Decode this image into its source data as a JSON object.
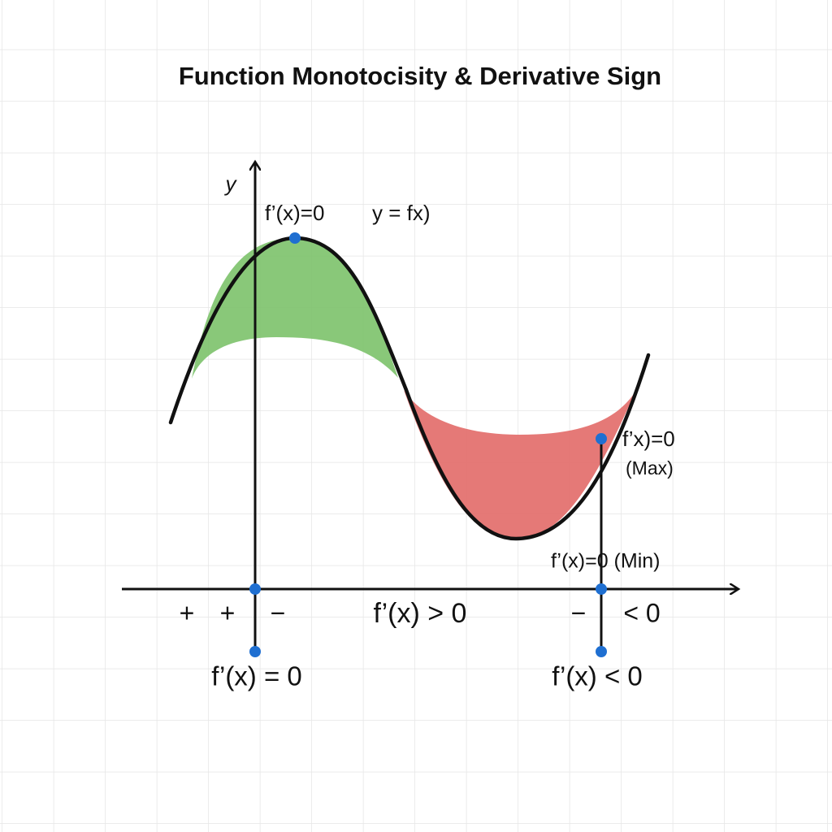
{
  "title": "Function Monotocisity & Derivative Sign",
  "axes": {
    "y_label": "y"
  },
  "annotations": {
    "max_top": "f’(x)=0",
    "curve_name": "y = fx)",
    "right_point": "f’x)=0",
    "right_point_note": "(Max)",
    "min_label": "f’(x)=0 (Min)",
    "bottom_left": "f’(x) = 0",
    "bottom_right": "f’(x) < 0"
  },
  "sign_row": [
    "+",
    "+",
    "−",
    "f’(x) > 0",
    "−",
    "< 0"
  ]
}
